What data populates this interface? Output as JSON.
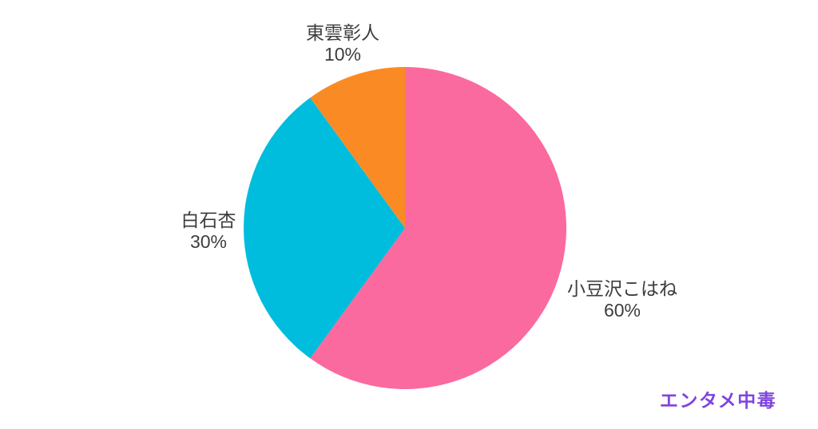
{
  "background_color": "#ffffff",
  "chart_data": {
    "type": "pie",
    "title": "",
    "start_position": "top",
    "direction": "clockwise",
    "legend_position": "none",
    "label_text_color": "#3d3d3d",
    "slices": [
      {
        "label": "小豆沢こはね",
        "value": 60,
        "display": "60%",
        "color": "#fa6a9e"
      },
      {
        "label": "白石杏",
        "value": 30,
        "display": "30%",
        "color": "#00bcdd"
      },
      {
        "label": "東雲彰人",
        "value": 10,
        "display": "10%",
        "color": "#fa8b24"
      }
    ]
  },
  "watermark": {
    "text": "エンタメ中毒",
    "color": "#7e44e0"
  }
}
